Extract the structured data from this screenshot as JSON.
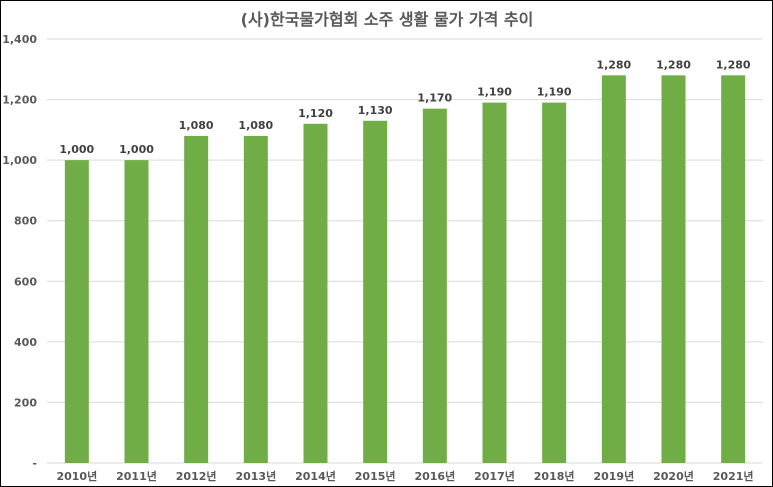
{
  "chart_data": {
    "type": "bar",
    "title": "(사)한국물가협회 소주 생활 물가 가격 추이",
    "categories": [
      "2010년",
      "2011년",
      "2012년",
      "2013년",
      "2014년",
      "2015년",
      "2016년",
      "2017년",
      "2018년",
      "2019년",
      "2020년",
      "2021년"
    ],
    "series": [
      {
        "values": [
          1000,
          1000,
          1080,
          1080,
          1120,
          1130,
          1170,
          1190,
          1190,
          1280,
          1280,
          1280
        ]
      }
    ],
    "data_labels": [
      "1,000",
      "1,000",
      "1,080",
      "1,080",
      "1,120",
      "1,130",
      "1,170",
      "1,190",
      "1,190",
      "1,280",
      "1,280",
      "1,280"
    ],
    "ylim": [
      0,
      1400
    ],
    "y_ticks": [
      0,
      200,
      400,
      600,
      800,
      1000,
      1200,
      1400
    ],
    "y_tick_labels": [
      "-",
      "200",
      "400",
      "600",
      "800",
      "1,000",
      "1,200",
      "1,400"
    ],
    "grid": true,
    "bar_color": "#70ad47",
    "legend": "none"
  }
}
